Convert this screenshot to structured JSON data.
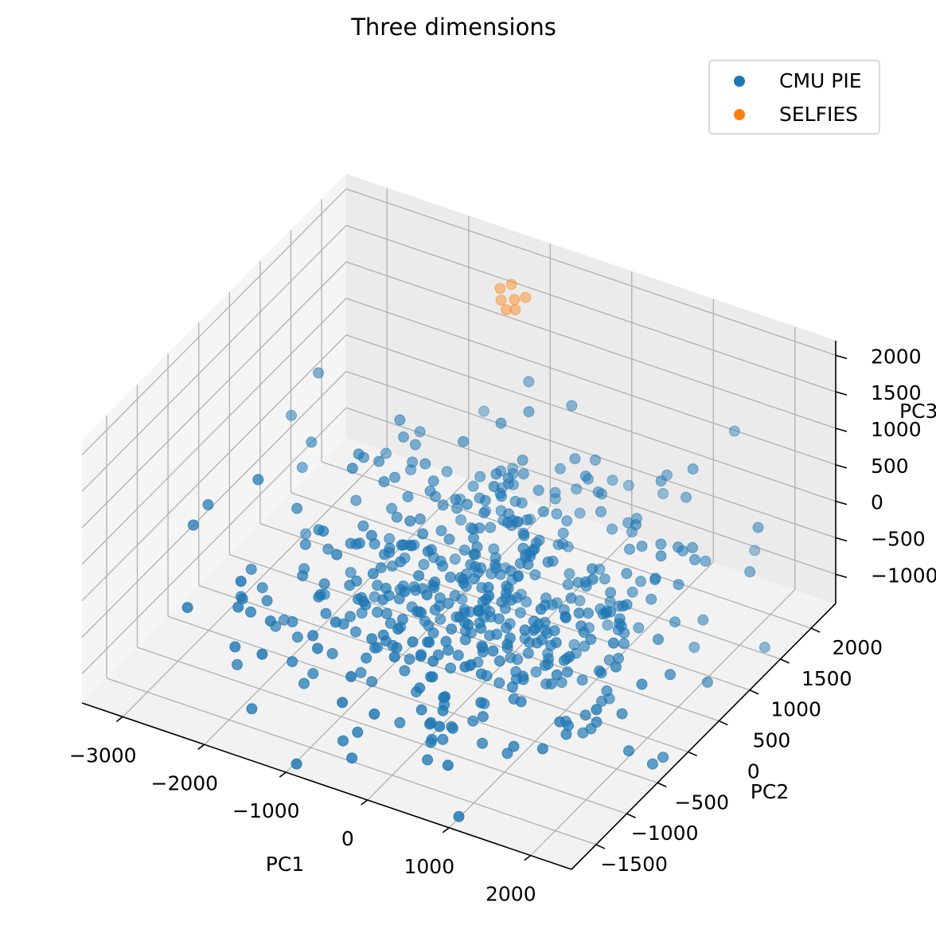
{
  "chart_data": {
    "type": "scatter",
    "projection": "3d",
    "title": "Three dimensions",
    "xlabel": "PC1",
    "ylabel": "PC2",
    "zlabel": "PC3",
    "xlim": [
      -3500,
      2500
    ],
    "ylim": [
      -1900,
      2400
    ],
    "zlim": [
      -1400,
      2200
    ],
    "x_ticks": [
      -3000,
      -2000,
      -1000,
      0,
      1000,
      2000
    ],
    "y_ticks": [
      -1500,
      -1000,
      -500,
      0,
      500,
      1000,
      1500,
      2000
    ],
    "z_ticks": [
      -1000,
      -500,
      0,
      500,
      1000,
      1500,
      2000
    ],
    "x_tick_labels": [
      "−3000",
      "−2000",
      "−1000",
      "0",
      "1000",
      "2000"
    ],
    "y_tick_labels": [
      "−1500",
      "−1000",
      "−500",
      "0",
      "500",
      "1000",
      "1500",
      "2000"
    ],
    "z_tick_labels": [
      "−1000",
      "−500",
      "0",
      "500",
      "1000",
      "1500",
      "2000"
    ],
    "grid": true,
    "legend_position": "top-right",
    "series": [
      {
        "name": "CMU PIE",
        "color": "#1f77b4",
        "generator": {
          "count": 520,
          "x_mean": 0,
          "x_sd": 1150,
          "y_mean": 0,
          "y_sd": 850,
          "z_mean": -200,
          "z_sd": 650
        }
      },
      {
        "name": "SELFIES",
        "color": "#ff7f0e",
        "points": [
          [
            -1350,
            2050,
            1750
          ],
          [
            -1300,
            2000,
            1650
          ],
          [
            -1250,
            2100,
            1800
          ],
          [
            -1100,
            1950,
            1780
          ],
          [
            -1050,
            1900,
            1700
          ],
          [
            -1000,
            2000,
            1800
          ],
          [
            -1200,
            1950,
            1600
          ]
        ]
      }
    ]
  }
}
